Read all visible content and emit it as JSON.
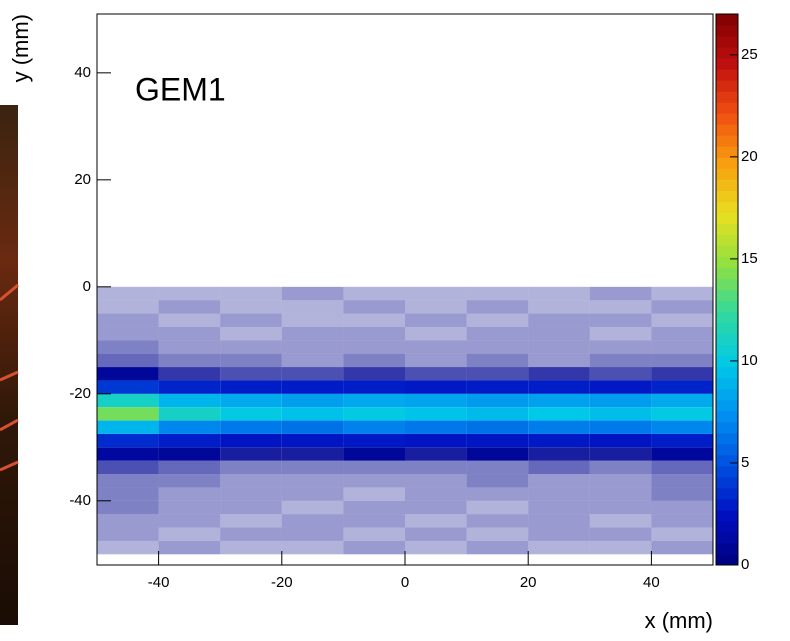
{
  "chart_data": {
    "type": "heatmap",
    "annotation": "GEM1",
    "x_label": "x (mm)",
    "y_label": "y (mm)",
    "xbins": [
      -50,
      -40,
      -30,
      -20,
      -10,
      0,
      10,
      20,
      30,
      40,
      50
    ],
    "ybins": [
      -50,
      -47.5,
      -45,
      -42.5,
      -40,
      -37.5,
      -35,
      -32.5,
      -30,
      -27.5,
      -25,
      -22.5,
      -20,
      -17.5,
      -15,
      -12.5,
      -10,
      -7.5,
      -5,
      -2.5,
      0
    ],
    "z": [
      [
        0.3,
        0.4,
        0.3,
        0.3,
        0.4,
        0.3,
        0.4,
        0.3,
        0.3,
        0.4
      ],
      [
        0.4,
        0.3,
        0.4,
        0.4,
        0.3,
        0.4,
        0.3,
        0.4,
        0.4,
        0.3
      ],
      [
        0.4,
        0.4,
        0.3,
        0.4,
        0.4,
        0.3,
        0.4,
        0.4,
        0.3,
        0.4
      ],
      [
        0.5,
        0.4,
        0.4,
        0.3,
        0.4,
        0.4,
        0.3,
        0.4,
        0.4,
        0.4
      ],
      [
        0.5,
        0.4,
        0.4,
        0.4,
        0.3,
        0.4,
        0.4,
        0.4,
        0.4,
        0.5
      ],
      [
        0.5,
        0.5,
        0.4,
        0.4,
        0.4,
        0.4,
        0.5,
        0.4,
        0.4,
        0.5
      ],
      [
        0.7,
        0.6,
        0.5,
        0.5,
        0.5,
        0.5,
        0.5,
        0.6,
        0.5,
        0.6
      ],
      [
        1.2,
        1,
        0.9,
        0.9,
        1,
        0.9,
        1,
        0.9,
        0.9,
        1.1
      ],
      [
        3.5,
        3,
        2.6,
        2.7,
        2.8,
        2.6,
        2.7,
        2.8,
        2.6,
        3
      ],
      [
        9,
        7,
        6.5,
        6.2,
        6.8,
        6.4,
        6.2,
        6.6,
        6.5,
        7
      ],
      [
        14,
        11,
        10,
        9.5,
        10,
        9.6,
        9.2,
        9.8,
        9.4,
        10
      ],
      [
        11,
        9,
        8.5,
        8,
        8.4,
        8.2,
        7.8,
        8.1,
        7.9,
        8.5
      ],
      [
        4,
        3.2,
        3,
        2.9,
        3,
        2.8,
        2.9,
        3,
        2.8,
        3.2
      ],
      [
        1,
        0.8,
        0.7,
        0.7,
        0.8,
        0.7,
        0.7,
        0.8,
        0.7,
        0.8
      ],
      [
        0.6,
        0.5,
        0.5,
        0.4,
        0.5,
        0.4,
        0.5,
        0.4,
        0.5,
        0.5
      ],
      [
        0.5,
        0.4,
        0.4,
        0.4,
        0.4,
        0.4,
        0.4,
        0.4,
        0.4,
        0.4
      ],
      [
        0.4,
        0.4,
        0.3,
        0.4,
        0.4,
        0.3,
        0.4,
        0.4,
        0.3,
        0.4
      ],
      [
        0.4,
        0.3,
        0.4,
        0.3,
        0.3,
        0.4,
        0.3,
        0.4,
        0.4,
        0.3
      ],
      [
        0.3,
        0.4,
        0.3,
        0.3,
        0.4,
        0.3,
        0.4,
        0.3,
        0.3,
        0.4
      ],
      [
        0.3,
        0.3,
        0.3,
        0.4,
        0.3,
        0.3,
        0.3,
        0.3,
        0.4,
        0.3
      ]
    ],
    "xlim": [
      -50,
      50
    ],
    "ylim": [
      -52,
      51
    ],
    "zlim": [
      0,
      27
    ],
    "xticks": [
      -40,
      -20,
      0,
      20,
      40
    ],
    "yticks": [
      -40,
      -20,
      0,
      20,
      40
    ],
    "zticks": [
      0,
      5,
      10,
      15,
      20,
      25
    ],
    "colorscale": [
      "#00007f",
      "#0010c0",
      "#0050e0",
      "#0090f0",
      "#00c8e8",
      "#30d8a0",
      "#90e040",
      "#e8e020",
      "#f8a010",
      "#f05010",
      "#c01010",
      "#800000"
    ]
  }
}
